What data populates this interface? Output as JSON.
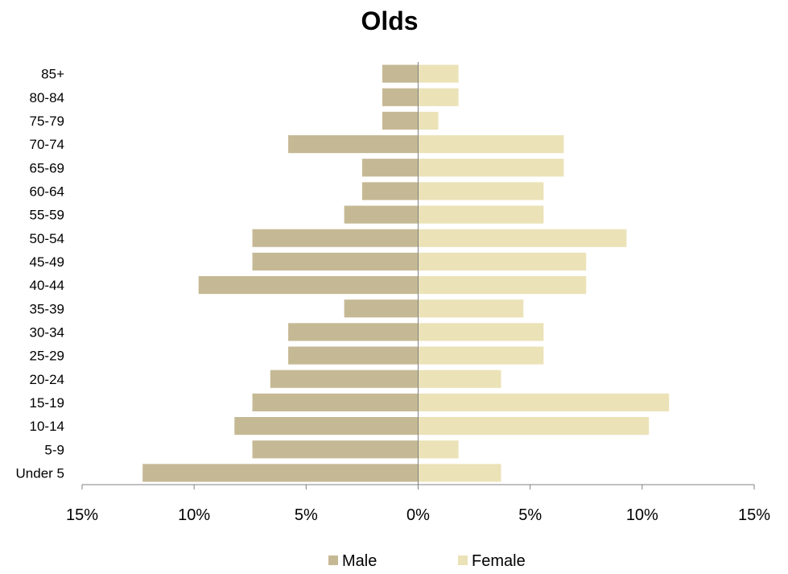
{
  "chart_data": {
    "type": "bar",
    "orientation": "horizontal",
    "subtype": "population-pyramid",
    "title": "Olds",
    "xlabel": "",
    "ylabel": "",
    "categories": [
      "Under 5",
      "5-9",
      "10-14",
      "15-19",
      "20-24",
      "25-29",
      "30-34",
      "35-39",
      "40-44",
      "45-49",
      "50-54",
      "55-59",
      "60-64",
      "65-69",
      "70-74",
      "75-79",
      "80-84",
      "85+"
    ],
    "series": [
      {
        "name": "Male",
        "color": "#c5b995",
        "values": [
          12.3,
          7.4,
          8.2,
          7.4,
          6.6,
          5.8,
          5.8,
          3.3,
          9.8,
          7.4,
          7.4,
          3.3,
          2.5,
          2.5,
          5.8,
          1.6,
          1.6,
          1.6
        ]
      },
      {
        "name": "Female",
        "color": "#ebe2b7",
        "values": [
          3.7,
          1.8,
          10.3,
          11.2,
          3.7,
          5.6,
          5.6,
          4.7,
          7.5,
          7.5,
          9.3,
          5.6,
          5.6,
          6.5,
          6.5,
          0.9,
          1.8,
          1.8
        ]
      }
    ],
    "xlim": [
      -15,
      15
    ],
    "xticks": [
      -15,
      -10,
      -5,
      0,
      5,
      10,
      15
    ],
    "xtick_labels": [
      "15%",
      "10%",
      "5%",
      "0%",
      "5%",
      "10%",
      "15%"
    ],
    "grid": false,
    "legend_position": "bottom"
  }
}
